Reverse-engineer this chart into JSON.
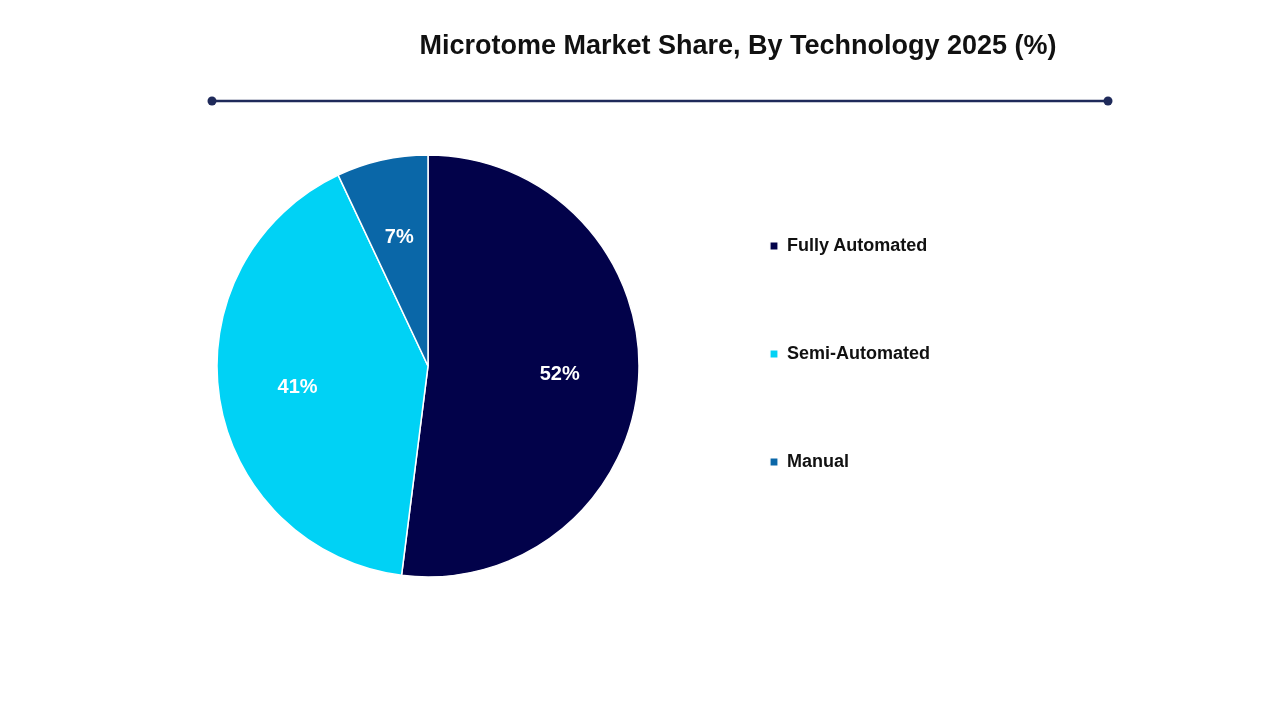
{
  "chart_data": {
    "type": "pie",
    "title": "Microtome Market Share, By Technology 2025 (%)",
    "categories": [
      "Fully Automated",
      "Semi-Automated",
      "Manual"
    ],
    "values": [
      52,
      41,
      7
    ],
    "value_labels": [
      "52%",
      "41%",
      "7%"
    ],
    "colors": [
      "#02024a",
      "#00d2f5",
      "#0a67a8"
    ],
    "legend": "right"
  }
}
